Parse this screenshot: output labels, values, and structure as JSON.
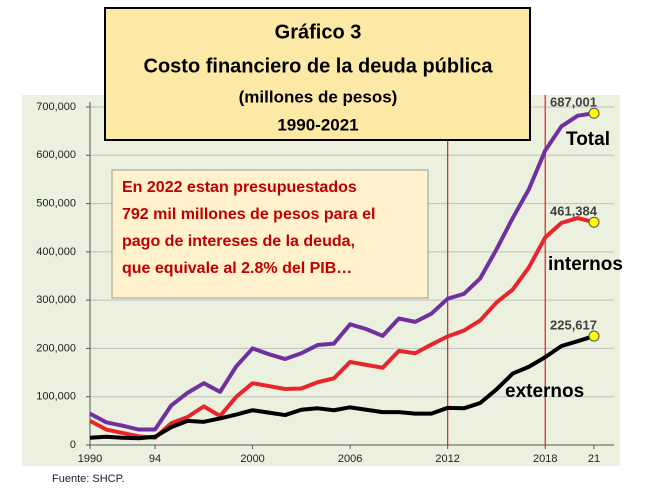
{
  "chart_data": {
    "type": "line",
    "title": "Gráfico 3",
    "subtitle": "Costo financiero de la deuda pública",
    "units": "(millones de pesos)",
    "period": "1990-2021",
    "annotation": [
      "En 2022 estan presupuestados",
      "792 mil millones de pesos para el",
      "pago de intereses de la deuda,",
      "que equivale al 2.8% del PIB…"
    ],
    "source": "Fuente: SHCP.",
    "x": [
      1990,
      1991,
      1992,
      1993,
      1994,
      1995,
      1996,
      1997,
      1998,
      1999,
      2000,
      2001,
      2002,
      2003,
      2004,
      2005,
      2006,
      2007,
      2008,
      2009,
      2010,
      2011,
      2012,
      2013,
      2014,
      2015,
      2016,
      2017,
      2018,
      2019,
      2020,
      2021
    ],
    "xlim": [
      1990,
      2021
    ],
    "xticks": [
      1990,
      {
        "value": 1994,
        "label": "94"
      },
      2000,
      2006,
      2012,
      2018,
      {
        "value": 2021,
        "label": "21"
      }
    ],
    "ylim": [
      0,
      700000
    ],
    "yticks": [
      0,
      {
        "value": 100000,
        "label": "100,000"
      },
      {
        "value": 200000,
        "label": "200,000"
      },
      {
        "value": 300000,
        "label": "300,000"
      },
      {
        "value": 400000,
        "label": "400,000"
      },
      {
        "value": 500000,
        "label": "500,000"
      },
      {
        "value": 600000,
        "label": "600,000"
      },
      {
        "value": 700000,
        "label": "700,000"
      }
    ],
    "grid": true,
    "vlines": [
      2012,
      2018
    ],
    "vline_color": "#e02020",
    "series": [
      {
        "name": "Total",
        "color": "#7030a0",
        "values": [
          65000,
          47000,
          40000,
          32000,
          32000,
          82000,
          108000,
          128000,
          110000,
          163000,
          200000,
          188000,
          178000,
          190000,
          207000,
          210000,
          250000,
          240000,
          226000,
          262000,
          255000,
          272000,
          303000,
          313000,
          345000,
          405000,
          470000,
          530000,
          610000,
          660000,
          682000,
          687001
        ],
        "value_labels": [
          null,
          null,
          null,
          null,
          null,
          null,
          null,
          null,
          null,
          null,
          null,
          null,
          null,
          null,
          null,
          null,
          null,
          null,
          null,
          null,
          null,
          null,
          null,
          null,
          null,
          null,
          null,
          null,
          null,
          null,
          null,
          "687,001"
        ]
      },
      {
        "name": "internos",
        "color": "#e8252a",
        "values": [
          50000,
          32000,
          25000,
          18000,
          15000,
          45000,
          58000,
          80000,
          60000,
          100000,
          128000,
          122000,
          116000,
          117000,
          130000,
          138000,
          172000,
          166000,
          160000,
          195000,
          190000,
          208000,
          225000,
          237000,
          258000,
          295000,
          322000,
          368000,
          430000,
          460000,
          470000,
          461384
        ],
        "value_labels": [
          null,
          null,
          null,
          null,
          null,
          null,
          null,
          null,
          null,
          null,
          null,
          null,
          null,
          null,
          null,
          null,
          null,
          null,
          null,
          null,
          null,
          null,
          null,
          null,
          null,
          null,
          null,
          null,
          null,
          null,
          null,
          "461,384"
        ]
      },
      {
        "name": "externos",
        "color": "#000000",
        "values": [
          15000,
          17000,
          15000,
          14000,
          17000,
          37000,
          50000,
          48000,
          55000,
          63000,
          72000,
          67000,
          62000,
          73000,
          76000,
          72000,
          78000,
          73000,
          68000,
          68000,
          65000,
          65000,
          77000,
          76000,
          87000,
          115000,
          148000,
          162000,
          182000,
          205000,
          215000,
          225617
        ],
        "value_labels": [
          null,
          null,
          null,
          null,
          null,
          null,
          null,
          null,
          null,
          null,
          null,
          null,
          null,
          null,
          null,
          null,
          null,
          null,
          null,
          null,
          null,
          null,
          null,
          null,
          null,
          null,
          null,
          null,
          null,
          null,
          null,
          "225,617"
        ]
      }
    ]
  }
}
